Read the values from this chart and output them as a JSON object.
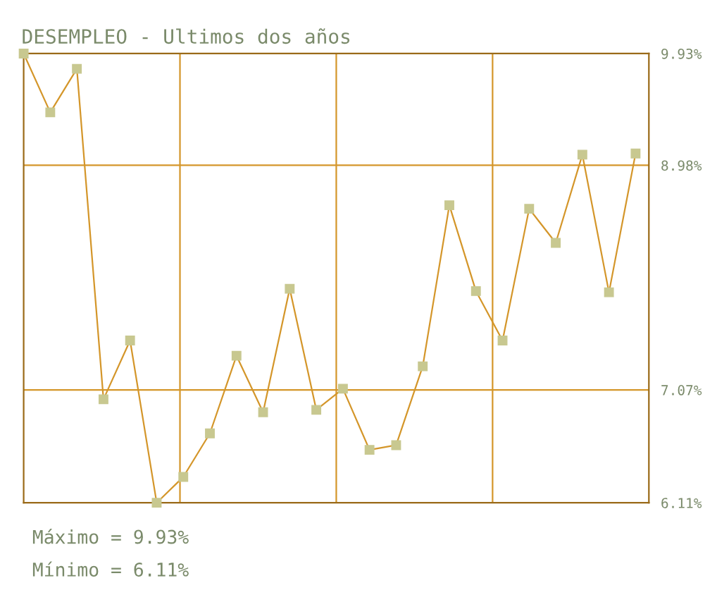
{
  "chart_data": {
    "type": "line",
    "title": "DESEMPLEO - Ultimos dos años",
    "categories": [
      null,
      null,
      null,
      null,
      null,
      null,
      null,
      null,
      null,
      null,
      null,
      null,
      null,
      null,
      null,
      null,
      null,
      null,
      null,
      null,
      null,
      null,
      null,
      null
    ],
    "series": [
      {
        "color": "#d4962a",
        "values": [
          9.93,
          9.43,
          9.8,
          6.99,
          7.49,
          6.11,
          6.33,
          6.7,
          7.36,
          6.88,
          7.93,
          6.9,
          7.08,
          6.56,
          6.6,
          7.27,
          8.64,
          7.91,
          7.49,
          8.61,
          8.32,
          9.07,
          7.9,
          9.08
        ]
      }
    ],
    "ylim": [
      6.11,
      9.93
    ],
    "yticks": [
      {
        "value": 6.11,
        "label": "6.11%"
      },
      {
        "value": 7.07,
        "label": "7.07%"
      },
      {
        "value": 8.98,
        "label": "8.98%"
      },
      {
        "value": 9.93,
        "label": "9.93%"
      }
    ],
    "grid": true,
    "marker": "square",
    "line_style": "solid",
    "tick_labels": "y",
    "annotations": [
      "Máximo = 9.93%",
      "Mínimo = 6.11%"
    ]
  }
}
